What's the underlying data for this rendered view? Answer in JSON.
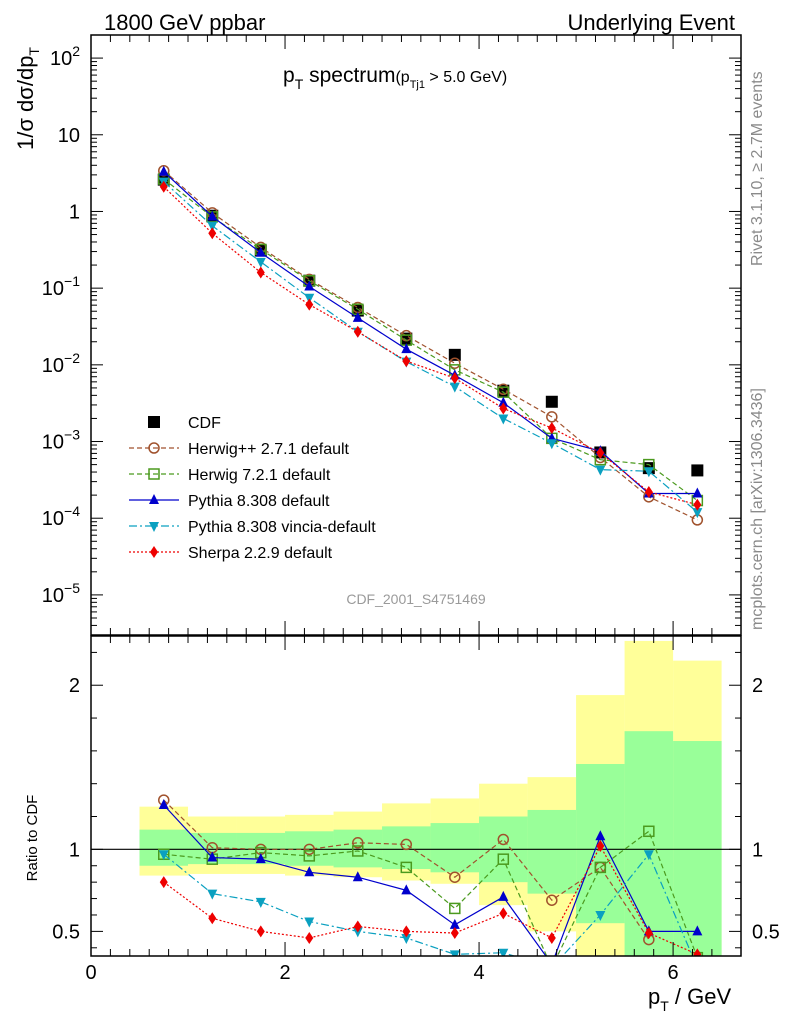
{
  "header": {
    "left": "1800 GeV ppbar",
    "right": "Underlying Event"
  },
  "side": {
    "rivet": "Rivet 3.1.10, ≥ 2.7M events",
    "mcplots": "mcplots.cern.ch [arXiv:1306.3436]"
  },
  "chart_data": [
    {
      "type": "line",
      "panel": "main",
      "title_main": "p",
      "title_sub": "T",
      "title_word": " spectrum",
      "title_cut_open": "(p",
      "title_cut_sub": "Tj1",
      "title_cut_close": " > 5.0 GeV)",
      "ylabel": "1/σ dσ/dp",
      "ylabel_sub": "T",
      "yscale": "log",
      "ylim": [
        3e-06,
        200
      ],
      "xlim": [
        0,
        6.7
      ],
      "watermark": "CDF_2001_S4751469",
      "y_ticks": [
        {
          "v": 100,
          "text": "10",
          "sup": "2"
        },
        {
          "v": 10,
          "text": "10",
          "sup": ""
        },
        {
          "v": 1,
          "text": "1",
          "sup": ""
        },
        {
          "v": 0.1,
          "text": "10",
          "sup": "−1"
        },
        {
          "v": 0.01,
          "text": "10",
          "sup": "−2"
        },
        {
          "v": 0.001,
          "text": "10",
          "sup": "−3"
        },
        {
          "v": 0.0001,
          "text": "10",
          "sup": "−4"
        },
        {
          "v": 1e-05,
          "text": "10",
          "sup": "−5"
        }
      ],
      "x": [
        0.75,
        1.25,
        1.75,
        2.25,
        2.75,
        3.25,
        3.75,
        4.25,
        4.75,
        5.25,
        5.75,
        6.25
      ],
      "series": [
        {
          "name": "CDF",
          "color": "#000000",
          "marker": "square",
          "dash": "none",
          "values": [
            2.6,
            0.88,
            0.31,
            0.125,
            0.051,
            0.022,
            0.0135,
            0.0046,
            0.0033,
            0.00072,
            0.00045,
            0.00042
          ]
        },
        {
          "name": "Herwig++ 2.7.1 default",
          "color": "#a0522d",
          "marker": "circle-open",
          "dash": "5,3",
          "values": [
            3.4,
            0.96,
            0.34,
            0.13,
            0.056,
            0.024,
            0.0105,
            0.0048,
            0.0021,
            0.00062,
            0.00019,
            9.5e-05
          ]
        },
        {
          "name": "Herwig 7.2.1 default",
          "color": "#4b9a1e",
          "marker": "square-open",
          "dash": "5,3",
          "values": [
            2.65,
            0.85,
            0.32,
            0.125,
            0.053,
            0.021,
            0.0086,
            0.0044,
            0.0011,
            0.00058,
            0.0005,
            0.00017
          ]
        },
        {
          "name": "Pythia 8.308 default",
          "color": "#0000cc",
          "marker": "triangle-up",
          "dash": "none",
          "values": [
            3.3,
            0.86,
            0.29,
            0.105,
            0.041,
            0.016,
            0.0073,
            0.0032,
            0.0011,
            0.00075,
            0.00021,
            0.00021
          ]
        },
        {
          "name": "Pythia 8.308 vincia-default",
          "color": "#0aa0c0",
          "marker": "triangle-down",
          "dash": "8,3,2,3",
          "values": [
            2.45,
            0.65,
            0.22,
            0.075,
            0.027,
            0.011,
            0.0052,
            0.002,
            0.00095,
            0.00043,
            0.00041,
            0.00012
          ]
        },
        {
          "name": "Sherpa 2.2.9 default",
          "color": "#ee0000",
          "marker": "diamond",
          "dash": "2,2",
          "values": [
            2.1,
            0.52,
            0.16,
            0.061,
            0.027,
            0.0112,
            0.0067,
            0.0027,
            0.0015,
            0.00071,
            0.00022,
            0.00015
          ]
        }
      ]
    },
    {
      "type": "line",
      "panel": "ratio",
      "ylabel": "Ratio to CDF",
      "xlabel": "p",
      "xlabel_sub": "T",
      "xlabel_unit": " / GeV",
      "ylim": [
        0.35,
        2.3
      ],
      "xlim": [
        0,
        6.7
      ],
      "x_ticks": [
        0,
        2,
        4,
        6
      ],
      "y_ticks": [
        0.5,
        1,
        2
      ],
      "bands": {
        "edges": [
          0.5,
          1.0,
          1.5,
          2.0,
          2.5,
          3.0,
          3.5,
          4.0,
          4.5,
          5.0,
          5.5,
          6.0,
          6.5
        ],
        "yellow": [
          [
            0.84,
            1.26
          ],
          [
            0.85,
            1.2
          ],
          [
            0.85,
            1.2
          ],
          [
            0.84,
            1.21
          ],
          [
            0.83,
            1.23
          ],
          [
            0.81,
            1.28
          ],
          [
            0.79,
            1.31
          ],
          [
            0.66,
            1.4
          ],
          [
            0.5,
            1.44
          ],
          [
            0.3,
            1.94
          ],
          [
            0.35,
            2.27
          ],
          [
            0.35,
            2.15
          ]
        ],
        "green": [
          [
            0.9,
            1.12
          ],
          [
            0.91,
            1.1
          ],
          [
            0.91,
            1.1
          ],
          [
            0.9,
            1.11
          ],
          [
            0.89,
            1.12
          ],
          [
            0.88,
            1.14
          ],
          [
            0.86,
            1.16
          ],
          [
            0.8,
            1.2
          ],
          [
            0.73,
            1.24
          ],
          [
            0.55,
            1.52
          ],
          [
            0.35,
            1.72
          ],
          [
            0.35,
            1.66
          ]
        ]
      },
      "x": [
        0.75,
        1.25,
        1.75,
        2.25,
        2.75,
        3.25,
        3.75,
        4.25,
        4.75,
        5.25,
        5.75,
        6.25
      ],
      "series": [
        {
          "name": "Herwig++ 2.7.1 default",
          "color": "#a0522d",
          "marker": "circle-open",
          "dash": "5,3",
          "values": [
            1.3,
            1.01,
            1.0,
            1.0,
            1.04,
            1.03,
            0.83,
            1.06,
            0.69,
            0.89,
            0.45,
            null
          ]
        },
        {
          "name": "Herwig 7.2.1 default",
          "color": "#4b9a1e",
          "marker": "square-open",
          "dash": "5,3",
          "values": [
            0.97,
            0.94,
            0.98,
            0.96,
            0.99,
            0.89,
            0.64,
            0.94,
            0.28,
            0.89,
            1.11,
            0.34
          ]
        },
        {
          "name": "Pythia 8.308 default",
          "color": "#0000cc",
          "marker": "triangle-up",
          "dash": "none",
          "values": [
            1.27,
            0.95,
            0.94,
            0.86,
            0.83,
            0.75,
            0.54,
            0.71,
            0.3,
            1.08,
            0.5,
            0.5
          ]
        },
        {
          "name": "Pythia 8.308 vincia-default",
          "color": "#0aa0c0",
          "marker": "triangle-down",
          "dash": "8,3,2,3",
          "values": [
            0.97,
            0.73,
            0.68,
            0.56,
            0.5,
            0.46,
            0.36,
            0.37,
            0.28,
            0.6,
            0.97,
            0.28
          ]
        },
        {
          "name": "Sherpa 2.2.9 default",
          "color": "#ee0000",
          "marker": "diamond",
          "dash": "2,2",
          "values": [
            0.8,
            0.58,
            0.5,
            0.46,
            0.53,
            0.5,
            0.49,
            0.61,
            0.46,
            1.02,
            0.49,
            0.36
          ]
        }
      ]
    }
  ]
}
